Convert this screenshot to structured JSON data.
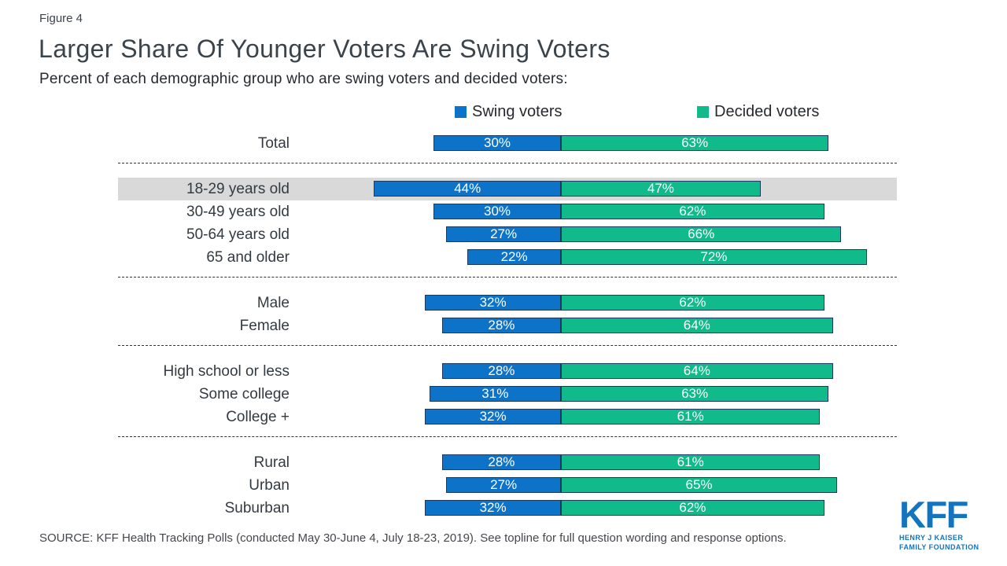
{
  "header": {
    "figure_label": "Figure 4",
    "title": "Larger Share Of Younger Voters Are Swing Voters",
    "subtitle": "Percent of each demographic group who are swing voters and decided voters:"
  },
  "legend": {
    "items": [
      {
        "label": "Swing voters",
        "color": "#0d73c8"
      },
      {
        "label": "Decided voters",
        "color": "#10ba8a"
      }
    ]
  },
  "chart_data": {
    "type": "bar",
    "orientation": "horizontal_stacked",
    "title": "Larger Share Of Younger Voters Are Swing Voters",
    "value_suffix": "%",
    "series": [
      {
        "name": "Swing voters",
        "color": "#0d73c8"
      },
      {
        "name": "Decided voters",
        "color": "#10ba8a"
      }
    ],
    "bar_border_color": "#1b3a5e",
    "highlight_band_color": "#d9d9d9",
    "layout_hints": {
      "aligned_at_series_boundary": true,
      "grid": "off",
      "legend_position": "top"
    },
    "groups": [
      {
        "name": "total",
        "rows": [
          {
            "label": "Total",
            "swing": 30,
            "decided": 63
          }
        ]
      },
      {
        "name": "age",
        "rows": [
          {
            "label": "18-29 years old",
            "swing": 44,
            "decided": 47,
            "highlight": true
          },
          {
            "label": "30-49 years old",
            "swing": 30,
            "decided": 62
          },
          {
            "label": "50-64 years old",
            "swing": 27,
            "decided": 66
          },
          {
            "label": "65 and older",
            "swing": 22,
            "decided": 72
          }
        ]
      },
      {
        "name": "gender",
        "rows": [
          {
            "label": "Male",
            "swing": 32,
            "decided": 62
          },
          {
            "label": "Female",
            "swing": 28,
            "decided": 64
          }
        ]
      },
      {
        "name": "education",
        "rows": [
          {
            "label": "High school or less",
            "swing": 28,
            "decided": 64
          },
          {
            "label": "Some college",
            "swing": 31,
            "decided": 63
          },
          {
            "label": "College +",
            "swing": 32,
            "decided": 61
          }
        ]
      },
      {
        "name": "geography",
        "rows": [
          {
            "label": "Rural",
            "swing": 28,
            "decided": 61
          },
          {
            "label": "Urban",
            "swing": 27,
            "decided": 65
          },
          {
            "label": "Suburban",
            "swing": 32,
            "decided": 62
          }
        ]
      }
    ]
  },
  "footer": {
    "source": "SOURCE: KFF Health Tracking Polls (conducted May 30-June 4, July 18-23, 2019). See topline for full question wording and response options."
  },
  "logo": {
    "acronym": "KFF",
    "line1": "HENRY J KAISER",
    "line2": "FAMILY FOUNDATION"
  }
}
